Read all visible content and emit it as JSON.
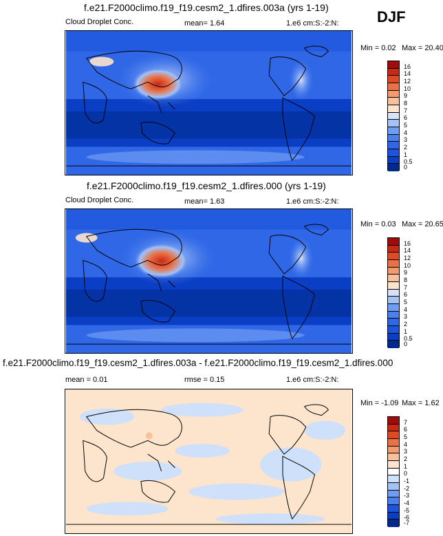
{
  "season": "DJF",
  "colors": {
    "abs_scale": [
      "#002a8c",
      "#0a3ec4",
      "#1d54dc",
      "#2f67e6",
      "#4a80ee",
      "#6f9df2",
      "#a3c2f6",
      "#d6e3fb",
      "#fde4cc",
      "#f8c19a",
      "#f29b6d",
      "#ea7146",
      "#dc4a26",
      "#c72a14",
      "#9e0c0c"
    ],
    "diff_scale": [
      "#002a8c",
      "#1d54dc",
      "#4a80ee",
      "#6f9df2",
      "#a3c2f6",
      "#cfe0fa",
      "#fde4cc",
      "#f8c19a",
      "#f29b6d",
      "#ea7146",
      "#dc4a26",
      "#c72a14",
      "#9e0c0c"
    ]
  },
  "chart_data": [
    {
      "type": "heatmap",
      "title": "f.e21.F2000climo.f19_f19.cesm2_1.dfires.003a (yrs 1-19)",
      "left_label": "Cloud Droplet Conc.",
      "center_label": "mean=   1.64",
      "right_label": "1.e6 cm:S:-2:N:",
      "min_label": "Min =   0.02",
      "max_label": "Max =  20.40",
      "mean": 1.64,
      "min": 0.02,
      "max": 20.4,
      "colorbar_levels": [
        "16",
        "14",
        "12",
        "10",
        "9",
        "8",
        "7",
        "6",
        "5",
        "4",
        "3",
        "2",
        "1",
        "0.5",
        "0"
      ]
    },
    {
      "type": "heatmap",
      "title": "f.e21.F2000climo.f19_f19.cesm2_1.dfires.000 (yrs 1-19)",
      "left_label": "Cloud Droplet Conc.",
      "center_label": "mean=   1.63",
      "right_label": "1.e6 cm:S:-2:N:",
      "min_label": "Min =   0.03",
      "max_label": "Max =  20.65",
      "mean": 1.63,
      "min": 0.03,
      "max": 20.65,
      "colorbar_levels": [
        "16",
        "14",
        "12",
        "10",
        "9",
        "8",
        "7",
        "6",
        "5",
        "4",
        "3",
        "2",
        "1",
        "0.5",
        "0"
      ]
    },
    {
      "type": "heatmap",
      "title": "f.e21.F2000climo.f19_f19.cesm2_1.dfires.003a - f.e21.F2000climo.f19_f19.cesm2_1.dfires.000",
      "left_label": "mean =   0.01",
      "center_label": "rmse =   0.15",
      "right_label": "1.e6 cm:S:-2:N:",
      "min_label": "Min =  -1.09",
      "max_label": "Max =   1.62",
      "mean": 0.01,
      "rmse": 0.15,
      "min": -1.09,
      "max": 1.62,
      "colorbar_levels": [
        "7",
        "6",
        "5",
        "4",
        "3",
        "2",
        "1",
        "0",
        "-1",
        "-2",
        "-3",
        "-4",
        "-5",
        "-6",
        "-7"
      ]
    }
  ]
}
